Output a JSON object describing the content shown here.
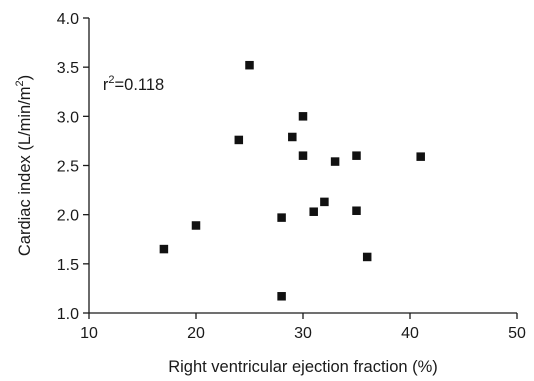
{
  "chart_data": {
    "type": "scatter",
    "title": "",
    "xlabel": "Right ventricular ejection fraction (%)",
    "ylabel_main": "Cardiac index (L/min/m",
    "ylabel_sup": "2",
    "ylabel_close": ")",
    "xlim": [
      10,
      50
    ],
    "ylim": [
      1.0,
      4.0
    ],
    "x_ticks": [
      10,
      20,
      30,
      40,
      50
    ],
    "x_tick_labels": [
      "10",
      "20",
      "30",
      "40",
      "50"
    ],
    "y_ticks": [
      1.0,
      1.5,
      2.0,
      2.5,
      3.0,
      3.5,
      4.0
    ],
    "y_tick_labels": [
      "1.0",
      "1.5",
      "2.0",
      "2.5",
      "3.0",
      "3.5",
      "4.0"
    ],
    "grid": false,
    "marker": "square",
    "marker_color": "#111111",
    "annotation": {
      "prefix": "r",
      "sup": "2",
      "suffix": "=0.118",
      "x": 11.3,
      "y": 3.33
    },
    "points": [
      {
        "x": 17,
        "y": 1.65
      },
      {
        "x": 20,
        "y": 1.89
      },
      {
        "x": 24,
        "y": 2.76
      },
      {
        "x": 25,
        "y": 3.52
      },
      {
        "x": 28,
        "y": 1.97
      },
      {
        "x": 28,
        "y": 1.17
      },
      {
        "x": 29,
        "y": 2.79
      },
      {
        "x": 30,
        "y": 3.0
      },
      {
        "x": 30,
        "y": 2.6
      },
      {
        "x": 31,
        "y": 2.03
      },
      {
        "x": 32,
        "y": 2.13
      },
      {
        "x": 33,
        "y": 2.54
      },
      {
        "x": 35,
        "y": 2.6
      },
      {
        "x": 35,
        "y": 2.04
      },
      {
        "x": 36,
        "y": 1.57
      },
      {
        "x": 41,
        "y": 2.59
      }
    ]
  }
}
